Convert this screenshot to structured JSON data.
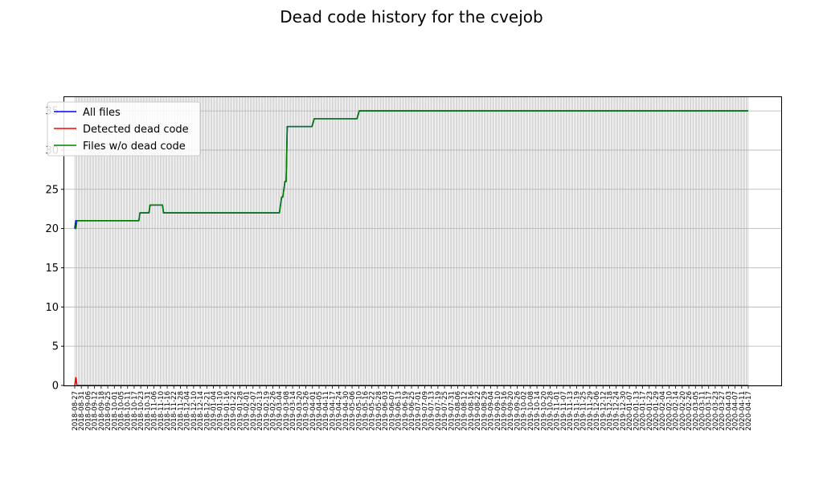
{
  "chart_data": {
    "type": "line",
    "title": "Dead code history for the cvejob",
    "xlabel": "",
    "ylabel": "",
    "ylim": [
      0,
      36.75
    ],
    "yticks": [
      0,
      5,
      10,
      15,
      20,
      25,
      30,
      35
    ],
    "grid": true,
    "legend_position": "top-left",
    "x_start": "2018-08-27",
    "x_end": "2020-04-17",
    "x_tick_labels": [
      "2018-08-27",
      "2018-08-31",
      "2018-09-06",
      "2018-09-12",
      "2018-09-18",
      "2018-09-25",
      "2018-10-01",
      "2018-10-05",
      "2018-10-11",
      "2018-10-17",
      "2018-10-23",
      "2018-10-31",
      "2018-11-06",
      "2018-11-10",
      "2018-11-16",
      "2018-11-22",
      "2018-11-28",
      "2018-12-04",
      "2018-12-10",
      "2018-12-14",
      "2018-12-21",
      "2019-01-04",
      "2019-01-10",
      "2019-01-16",
      "2019-01-22",
      "2019-01-28",
      "2019-02-01",
      "2019-02-07",
      "2019-02-13",
      "2019-02-19",
      "2019-02-26",
      "2019-03-04",
      "2019-03-08",
      "2019-03-14",
      "2019-03-20",
      "2019-03-26",
      "2019-04-01",
      "2019-04-05",
      "2019-04-11",
      "2019-04-17",
      "2019-04-24",
      "2019-04-30",
      "2019-05-06",
      "2019-05-10",
      "2019-05-16",
      "2019-05-22",
      "2019-05-28",
      "2019-06-03",
      "2019-06-07",
      "2019-06-13",
      "2019-06-19",
      "2019-06-25",
      "2019-07-01",
      "2019-07-09",
      "2019-07-13",
      "2019-07-19",
      "2019-07-25",
      "2019-07-31",
      "2019-08-06",
      "2019-08-12",
      "2019-08-16",
      "2019-08-22",
      "2019-08-29",
      "2019-09-04",
      "2019-09-10",
      "2019-09-16",
      "2019-09-20",
      "2019-09-26",
      "2019-10-02",
      "2019-10-08",
      "2019-10-14",
      "2019-10-20",
      "2019-10-28",
      "2019-11-01",
      "2019-11-07",
      "2019-11-13",
      "2019-11-19",
      "2019-11-25",
      "2019-11-29",
      "2019-12-06",
      "2019-12-12",
      "2019-12-18",
      "2019-12-24",
      "2019-12-30",
      "2020-01-07",
      "2020-01-13",
      "2020-01-17",
      "2020-01-23",
      "2020-01-29",
      "2020-02-04",
      "2020-02-10",
      "2020-02-14",
      "2020-02-20",
      "2020-02-26",
      "2020-03-05",
      "2020-03-11",
      "2020-03-17",
      "2020-03-23",
      "2020-03-27",
      "2020-04-03",
      "2020-04-07",
      "2020-04-11",
      "2020-04-17"
    ],
    "series": [
      {
        "name": "All files",
        "color": "#0000ff",
        "points": [
          [
            "2018-08-27",
            20
          ],
          [
            "2018-08-28",
            21
          ],
          [
            "2018-10-23",
            21
          ],
          [
            "2018-10-24",
            22
          ],
          [
            "2018-11-01",
            22
          ],
          [
            "2018-11-02",
            23
          ],
          [
            "2018-11-13",
            23
          ],
          [
            "2018-11-14",
            22
          ],
          [
            "2019-02-25",
            22
          ],
          [
            "2019-02-27",
            24
          ],
          [
            "2019-02-28",
            24
          ],
          [
            "2019-03-02",
            26
          ],
          [
            "2019-03-03",
            26
          ],
          [
            "2019-03-04",
            33
          ],
          [
            "2019-03-26",
            33
          ],
          [
            "2019-03-28",
            34
          ],
          [
            "2019-05-05",
            34
          ],
          [
            "2019-05-07",
            35
          ],
          [
            "2020-04-17",
            35
          ]
        ]
      },
      {
        "name": "Detected dead code",
        "color": "#ff0000",
        "points": [
          [
            "2018-08-27",
            0
          ],
          [
            "2018-08-28",
            1
          ],
          [
            "2018-08-29",
            0
          ],
          [
            "2020-04-17",
            0
          ]
        ]
      },
      {
        "name": "Files w/o dead code",
        "color": "#008000",
        "points": [
          [
            "2018-08-27",
            20
          ],
          [
            "2018-08-28",
            20
          ],
          [
            "2018-08-29",
            21
          ],
          [
            "2018-10-23",
            21
          ],
          [
            "2018-10-24",
            22
          ],
          [
            "2018-11-01",
            22
          ],
          [
            "2018-11-02",
            23
          ],
          [
            "2018-11-13",
            23
          ],
          [
            "2018-11-14",
            22
          ],
          [
            "2019-02-25",
            22
          ],
          [
            "2019-02-27",
            24
          ],
          [
            "2019-02-28",
            24
          ],
          [
            "2019-03-02",
            26
          ],
          [
            "2019-03-03",
            26
          ],
          [
            "2019-03-04",
            33
          ],
          [
            "2019-03-26",
            33
          ],
          [
            "2019-03-28",
            34
          ],
          [
            "2019-05-05",
            34
          ],
          [
            "2019-05-07",
            35
          ],
          [
            "2020-04-17",
            35
          ]
        ]
      }
    ]
  }
}
